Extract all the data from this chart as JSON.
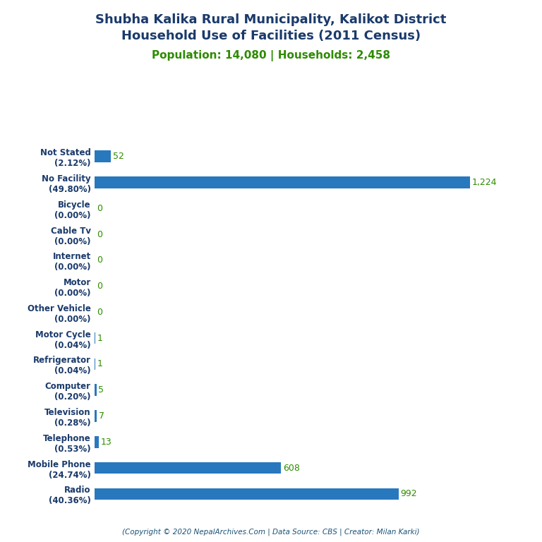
{
  "title_line1": "Shubha Kalika Rural Municipality, Kalikot District",
  "title_line2": "Household Use of Facilities (2011 Census)",
  "subtitle": "Population: 14,080 | Households: 2,458",
  "copyright": "(Copyright © 2020 NepalArchives.Com | Data Source: CBS | Creator: Milan Karki)",
  "categories": [
    "Not Stated\n(2.12%)",
    "No Facility\n(49.80%)",
    "Bicycle\n(0.00%)",
    "Cable Tv\n(0.00%)",
    "Internet\n(0.00%)",
    "Motor\n(0.00%)",
    "Other Vehicle\n(0.00%)",
    "Motor Cycle\n(0.04%)",
    "Refrigerator\n(0.04%)",
    "Computer\n(0.20%)",
    "Television\n(0.28%)",
    "Telephone\n(0.53%)",
    "Mobile Phone\n(24.74%)",
    "Radio\n(40.36%)"
  ],
  "values": [
    52,
    1224,
    0,
    0,
    0,
    0,
    0,
    1,
    1,
    5,
    7,
    13,
    608,
    992
  ],
  "bar_color": "#2878be",
  "title_color": "#1a3a6b",
  "subtitle_color": "#2e8b00",
  "value_color": "#2e8b00",
  "copyright_color": "#1a5276",
  "background_color": "#ffffff",
  "xlim": [
    0,
    1380
  ],
  "figsize": [
    7.68,
    7.68
  ],
  "dpi": 100,
  "bar_height": 0.45,
  "label_fontsize": 8.5,
  "value_fontsize": 9,
  "title_fontsize": 13,
  "subtitle_fontsize": 11
}
